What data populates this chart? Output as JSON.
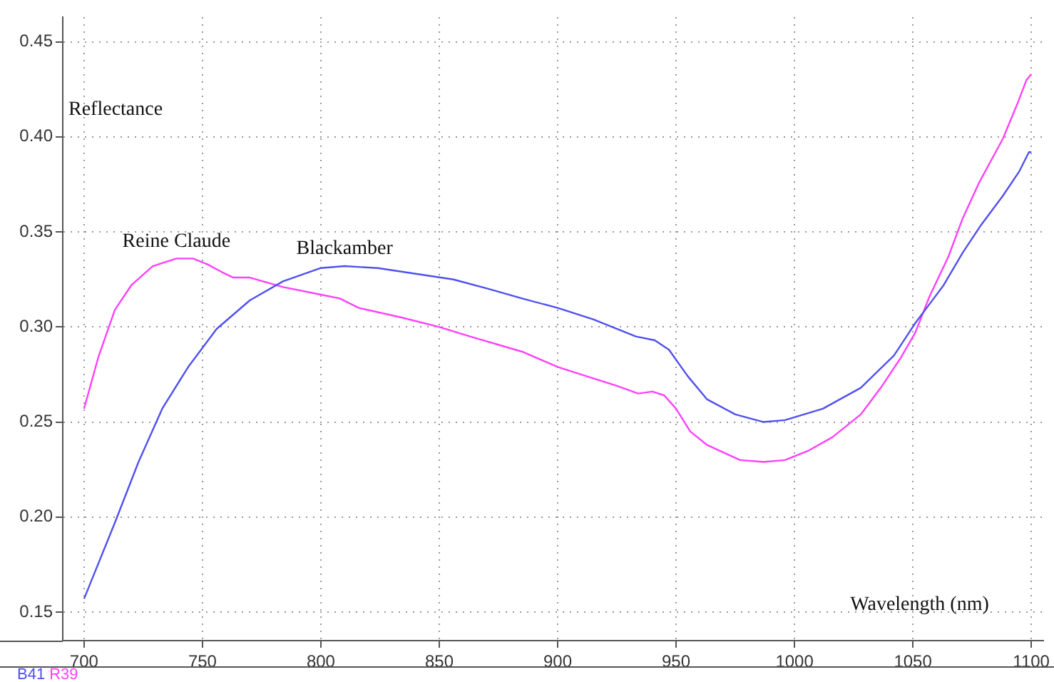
{
  "chart_data": {
    "type": "line",
    "xlabel": "Wavelength (nm)",
    "ylabel": "Reflectance",
    "xlim": [
      691,
      1105
    ],
    "ylim": [
      0.135,
      0.463
    ],
    "xticks": [
      700,
      750,
      800,
      850,
      900,
      950,
      1000,
      1050,
      1100
    ],
    "yticks": [
      {
        "value": 0.15,
        "label": "0.15"
      },
      {
        "value": 0.2,
        "label": "0.20"
      },
      {
        "value": 0.25,
        "label": "0.25"
      },
      {
        "value": 0.3,
        "label": "0.30"
      },
      {
        "value": 0.35,
        "label": "0.35"
      },
      {
        "value": 0.4,
        "label": "0.40"
      },
      {
        "value": 0.45,
        "label": "0.45"
      }
    ],
    "grid": true,
    "legend": false,
    "marker": "none",
    "line_style": "solid",
    "series": [
      {
        "name": "Blackamber",
        "color": "#5050f0",
        "x": [
          700,
          713,
          723,
          733,
          744,
          756,
          770,
          784,
          800,
          810,
          824,
          840,
          856,
          871,
          885,
          900,
          915,
          933,
          941,
          947,
          955,
          963,
          975,
          987,
          996,
          1012,
          1028,
          1042,
          1051,
          1057,
          1063,
          1071,
          1079,
          1088,
          1095,
          1099,
          1100
        ],
        "values": [
          0.157,
          0.197,
          0.229,
          0.257,
          0.279,
          0.299,
          0.314,
          0.324,
          0.331,
          0.332,
          0.331,
          0.328,
          0.325,
          0.32,
          0.315,
          0.31,
          0.304,
          0.295,
          0.293,
          0.288,
          0.274,
          0.262,
          0.254,
          0.25,
          0.251,
          0.257,
          0.268,
          0.285,
          0.302,
          0.312,
          0.322,
          0.339,
          0.354,
          0.369,
          0.382,
          0.392,
          0.392
        ]
      },
      {
        "name": "Reine Claude",
        "color": "#ff40ff",
        "x": [
          700,
          706,
          713,
          720,
          729,
          739,
          746,
          752,
          758,
          763,
          770,
          784,
          800,
          808,
          816,
          834,
          850,
          863,
          885,
          900,
          915,
          925,
          934,
          940,
          945,
          950,
          956,
          963,
          977,
          987,
          996,
          1006,
          1016,
          1028,
          1037,
          1045,
          1051,
          1057,
          1065,
          1071,
          1078,
          1088,
          1094,
          1098,
          1100
        ],
        "values": [
          0.257,
          0.284,
          0.309,
          0.322,
          0.332,
          0.336,
          0.336,
          0.333,
          0.329,
          0.326,
          0.326,
          0.321,
          0.317,
          0.315,
          0.31,
          0.305,
          0.3,
          0.295,
          0.287,
          0.279,
          0.273,
          0.269,
          0.265,
          0.266,
          0.264,
          0.257,
          0.245,
          0.238,
          0.23,
          0.229,
          0.23,
          0.235,
          0.242,
          0.254,
          0.269,
          0.284,
          0.297,
          0.316,
          0.337,
          0.357,
          0.376,
          0.399,
          0.417,
          0.43,
          0.433
        ]
      }
    ],
    "annotations": [
      "B41",
      "R39"
    ]
  }
}
